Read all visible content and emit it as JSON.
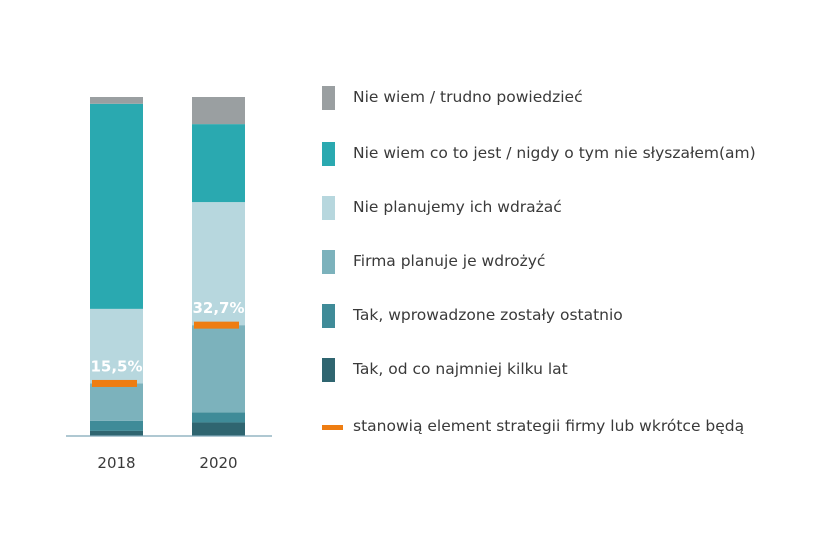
{
  "chart_data": {
    "type": "bar",
    "stacked": true,
    "categories": [
      "2018",
      "2020"
    ],
    "ylim": [
      0,
      100
    ],
    "series": [
      {
        "name": "Tak, od co najmniej kilku lat",
        "color": "#2f6570",
        "values": [
          1.5,
          4.0
        ]
      },
      {
        "name": "Tak, wprowadzone zostały ostatnio",
        "color": "#3f8b98",
        "values": [
          3.0,
          3.0
        ]
      },
      {
        "name": "Firma planuje je wdrożyć",
        "color": "#7cb2bc",
        "values": [
          11.0,
          25.7
        ]
      },
      {
        "name": "Nie planujemy ich wdrażać",
        "color": "#b7d7de",
        "values": [
          22.0,
          36.3
        ]
      },
      {
        "name": "Nie wiem co to jest / nigdy o tym nie słyszałem(am)",
        "color": "#2aa9b0",
        "values": [
          60.5,
          23.0
        ]
      },
      {
        "name": "Nie wiem / trudno powiedzieć",
        "color": "#9a9fa1",
        "values": [
          2.0,
          8.0
        ]
      }
    ],
    "markers": {
      "name": "stanowią element strategii firmy lub wkrótce będą",
      "color": "#ee7d12",
      "values": [
        15.5,
        32.7
      ],
      "labels": [
        "15,5%",
        "32,7%"
      ]
    },
    "legend_order": [
      "Nie wiem / trudno powiedzieć",
      "Nie wiem co to jest / nigdy o tym nie słyszałem(am)",
      "Nie planujemy ich wdrażać",
      "Firma planuje je wdrożyć",
      "Tak, wprowadzone zostały ostatnio",
      "Tak, od co najmniej kilku lat",
      "stanowią element strategii firmy lub wkrótce będą"
    ],
    "legend_placement": "right",
    "grid": false
  }
}
